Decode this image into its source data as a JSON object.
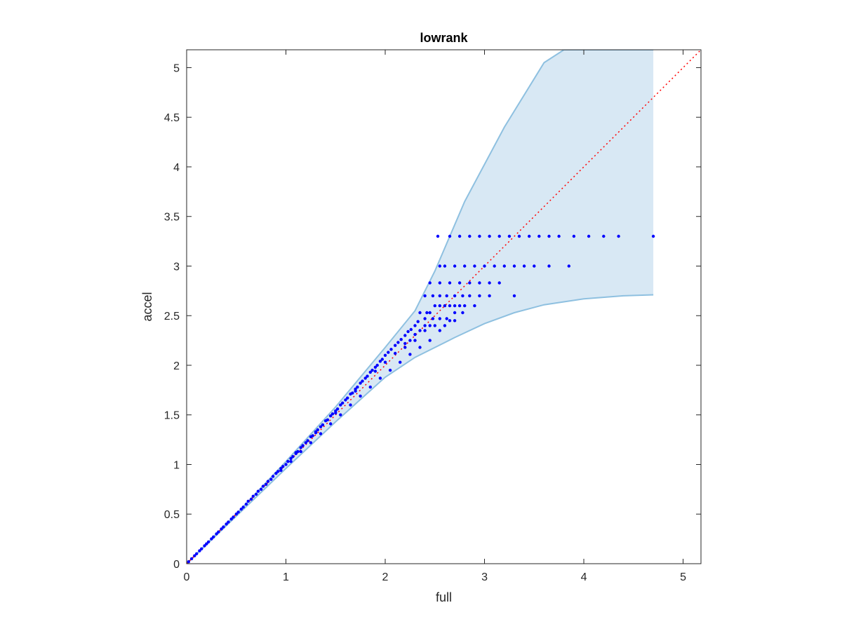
{
  "chart_data": {
    "type": "scatter",
    "title": "lowrank",
    "xlabel": "full",
    "ylabel": "accel",
    "xlim": [
      0,
      5.18
    ],
    "ylim": [
      0,
      5.18
    ],
    "x_ticks": [
      0,
      1,
      2,
      3,
      4,
      5
    ],
    "x_tick_labels": [
      "0",
      "1",
      "2",
      "3",
      "4",
      "5"
    ],
    "y_ticks": [
      0,
      0.5,
      1,
      1.5,
      2,
      2.5,
      3,
      3.5,
      4,
      4.5,
      5
    ],
    "y_tick_labels": [
      "0",
      "0.5",
      "1",
      "1.5",
      "2",
      "2.5",
      "3",
      "3.5",
      "4",
      "4.5",
      "5"
    ],
    "grid": false,
    "colors": {
      "points": "#0000ff",
      "band_fill": "#d8e8f4",
      "band_edge": "#8ec0e0",
      "reference_line": "#ff0000"
    },
    "reference_line": {
      "style": "dotted",
      "x": [
        0,
        5.18
      ],
      "y": [
        0,
        5.18
      ]
    },
    "band": {
      "upper": [
        [
          0,
          0
        ],
        [
          0.5,
          0.5
        ],
        [
          1,
          1.03
        ],
        [
          1.5,
          1.58
        ],
        [
          2,
          2.18
        ],
        [
          2.3,
          2.55
        ],
        [
          2.5,
          2.95
        ],
        [
          2.8,
          3.65
        ],
        [
          3.2,
          4.4
        ],
        [
          3.6,
          5.05
        ],
        [
          3.8,
          5.18
        ],
        [
          4.7,
          5.18
        ]
      ],
      "lower": [
        [
          0,
          0
        ],
        [
          0.5,
          0.48
        ],
        [
          1,
          0.96
        ],
        [
          1.5,
          1.43
        ],
        [
          2,
          1.88
        ],
        [
          2.3,
          2.08
        ],
        [
          2.7,
          2.28
        ],
        [
          3,
          2.42
        ],
        [
          3.3,
          2.53
        ],
        [
          3.6,
          2.61
        ],
        [
          4,
          2.67
        ],
        [
          4.4,
          2.7
        ],
        [
          4.7,
          2.71
        ]
      ]
    },
    "series": [
      {
        "points": [
          [
            0.02,
            0.02
          ],
          [
            0.05,
            0.05
          ],
          [
            0.08,
            0.08
          ],
          [
            0.1,
            0.1
          ],
          [
            0.13,
            0.13
          ],
          [
            0.15,
            0.15
          ],
          [
            0.18,
            0.18
          ],
          [
            0.2,
            0.2
          ],
          [
            0.22,
            0.22
          ],
          [
            0.25,
            0.25
          ],
          [
            0.27,
            0.27
          ],
          [
            0.3,
            0.3
          ],
          [
            0.32,
            0.32
          ],
          [
            0.35,
            0.35
          ],
          [
            0.37,
            0.37
          ],
          [
            0.4,
            0.4
          ],
          [
            0.42,
            0.42
          ],
          [
            0.45,
            0.45
          ],
          [
            0.47,
            0.47
          ],
          [
            0.5,
            0.5
          ],
          [
            0.52,
            0.52
          ],
          [
            0.55,
            0.55
          ],
          [
            0.57,
            0.57
          ],
          [
            0.6,
            0.6
          ],
          [
            0.62,
            0.63
          ],
          [
            0.65,
            0.65
          ],
          [
            0.67,
            0.68
          ],
          [
            0.7,
            0.7
          ],
          [
            0.72,
            0.73
          ],
          [
            0.75,
            0.75
          ],
          [
            0.77,
            0.78
          ],
          [
            0.8,
            0.8
          ],
          [
            0.82,
            0.83
          ],
          [
            0.85,
            0.85
          ],
          [
            0.87,
            0.88
          ],
          [
            0.9,
            0.91
          ],
          [
            0.92,
            0.93
          ],
          [
            0.95,
            0.96
          ],
          [
            0.97,
            0.98
          ],
          [
            1.0,
            1.0
          ],
          [
            1.02,
            1.03
          ],
          [
            1.05,
            1.06
          ],
          [
            1.07,
            1.08
          ],
          [
            1.1,
            1.12
          ],
          [
            1.12,
            1.13
          ],
          [
            1.15,
            1.17
          ],
          [
            1.17,
            1.19
          ],
          [
            1.2,
            1.22
          ],
          [
            1.22,
            1.24
          ],
          [
            1.25,
            1.28
          ],
          [
            1.27,
            1.29
          ],
          [
            1.3,
            1.33
          ],
          [
            1.32,
            1.35
          ],
          [
            1.35,
            1.38
          ],
          [
            1.37,
            1.4
          ],
          [
            1.4,
            1.44
          ],
          [
            1.42,
            1.45
          ],
          [
            1.45,
            1.49
          ],
          [
            1.47,
            1.51
          ],
          [
            1.5,
            1.54
          ],
          [
            1.52,
            1.56
          ],
          [
            1.55,
            1.6
          ],
          [
            1.57,
            1.62
          ],
          [
            1.6,
            1.65
          ],
          [
            1.62,
            1.67
          ],
          [
            1.65,
            1.71
          ],
          [
            1.67,
            1.72
          ],
          [
            1.7,
            1.76
          ],
          [
            1.72,
            1.78
          ],
          [
            1.75,
            1.82
          ],
          [
            1.77,
            1.84
          ],
          [
            1.8,
            1.87
          ],
          [
            1.82,
            1.89
          ],
          [
            1.85,
            1.93
          ],
          [
            1.87,
            1.95
          ],
          [
            1.9,
            1.98
          ],
          [
            1.92,
            2.0
          ],
          [
            1.95,
            2.04
          ],
          [
            1.97,
            2.06
          ],
          [
            2.0,
            2.1
          ],
          [
            2.03,
            2.13
          ],
          [
            2.06,
            2.16
          ],
          [
            2.1,
            2.2
          ],
          [
            2.13,
            2.23
          ],
          [
            2.16,
            2.26
          ],
          [
            2.2,
            2.3
          ],
          [
            2.23,
            2.34
          ],
          [
            2.26,
            2.36
          ],
          [
            2.3,
            2.4
          ],
          [
            2.33,
            2.44
          ],
          [
            0.95,
            0.94
          ],
          [
            1.05,
            1.03
          ],
          [
            1.15,
            1.13
          ],
          [
            1.25,
            1.22
          ],
          [
            1.35,
            1.31
          ],
          [
            1.45,
            1.41
          ],
          [
            1.55,
            1.5
          ],
          [
            1.65,
            1.6
          ],
          [
            1.75,
            1.69
          ],
          [
            1.85,
            1.78
          ],
          [
            1.95,
            1.87
          ],
          [
            2.05,
            1.95
          ],
          [
            2.15,
            2.03
          ],
          [
            2.25,
            2.11
          ],
          [
            2.35,
            2.18
          ],
          [
            2.45,
            2.25
          ],
          [
            1.1,
            1.11
          ],
          [
            1.3,
            1.32
          ],
          [
            1.5,
            1.52
          ],
          [
            1.7,
            1.74
          ],
          [
            1.9,
            1.94
          ],
          [
            2.0,
            2.03
          ],
          [
            2.1,
            2.12
          ],
          [
            2.2,
            2.22
          ],
          [
            2.3,
            2.31
          ],
          [
            2.4,
            2.4
          ],
          [
            2.4,
            2.47
          ],
          [
            2.45,
            2.53
          ],
          [
            2.5,
            2.6
          ],
          [
            2.55,
            2.6
          ],
          [
            2.6,
            2.6
          ],
          [
            2.65,
            2.6
          ],
          [
            2.7,
            2.6
          ],
          [
            2.75,
            2.6
          ],
          [
            2.8,
            2.6
          ],
          [
            2.9,
            2.6
          ],
          [
            2.35,
            2.53
          ],
          [
            2.42,
            2.53
          ],
          [
            2.48,
            2.47
          ],
          [
            2.55,
            2.47
          ],
          [
            2.62,
            2.47
          ],
          [
            2.7,
            2.53
          ],
          [
            2.78,
            2.53
          ],
          [
            2.4,
            2.7
          ],
          [
            2.48,
            2.7
          ],
          [
            2.55,
            2.7
          ],
          [
            2.62,
            2.7
          ],
          [
            2.7,
            2.7
          ],
          [
            2.78,
            2.7
          ],
          [
            2.85,
            2.7
          ],
          [
            2.95,
            2.7
          ],
          [
            3.05,
            2.7
          ],
          [
            3.3,
            2.7
          ],
          [
            2.45,
            2.83
          ],
          [
            2.55,
            2.83
          ],
          [
            2.65,
            2.83
          ],
          [
            2.75,
            2.83
          ],
          [
            2.85,
            2.83
          ],
          [
            2.95,
            2.83
          ],
          [
            3.05,
            2.83
          ],
          [
            3.15,
            2.83
          ],
          [
            2.55,
            3.0
          ],
          [
            2.6,
            3.0
          ],
          [
            2.7,
            3.0
          ],
          [
            2.8,
            3.0
          ],
          [
            2.9,
            3.0
          ],
          [
            3.0,
            3.0
          ],
          [
            3.1,
            3.0
          ],
          [
            3.2,
            3.0
          ],
          [
            3.3,
            3.0
          ],
          [
            3.4,
            3.0
          ],
          [
            3.5,
            3.0
          ],
          [
            3.65,
            3.0
          ],
          [
            3.85,
            3.0
          ],
          [
            2.53,
            3.3
          ],
          [
            2.65,
            3.3
          ],
          [
            2.75,
            3.3
          ],
          [
            2.85,
            3.3
          ],
          [
            2.95,
            3.3
          ],
          [
            3.05,
            3.3
          ],
          [
            3.15,
            3.3
          ],
          [
            3.25,
            3.3
          ],
          [
            3.35,
            3.3
          ],
          [
            3.45,
            3.3
          ],
          [
            3.55,
            3.3
          ],
          [
            3.65,
            3.3
          ],
          [
            3.75,
            3.3
          ],
          [
            3.9,
            3.3
          ],
          [
            4.05,
            3.3
          ],
          [
            4.2,
            3.3
          ],
          [
            4.35,
            3.3
          ],
          [
            4.7,
            3.3
          ],
          [
            2.2,
            2.18
          ],
          [
            2.25,
            2.25
          ],
          [
            2.3,
            2.25
          ],
          [
            2.35,
            2.35
          ],
          [
            2.4,
            2.35
          ],
          [
            2.45,
            2.4
          ],
          [
            2.5,
            2.4
          ],
          [
            2.55,
            2.35
          ],
          [
            2.6,
            2.4
          ],
          [
            2.65,
            2.45
          ],
          [
            2.7,
            2.45
          ]
        ]
      }
    ]
  }
}
